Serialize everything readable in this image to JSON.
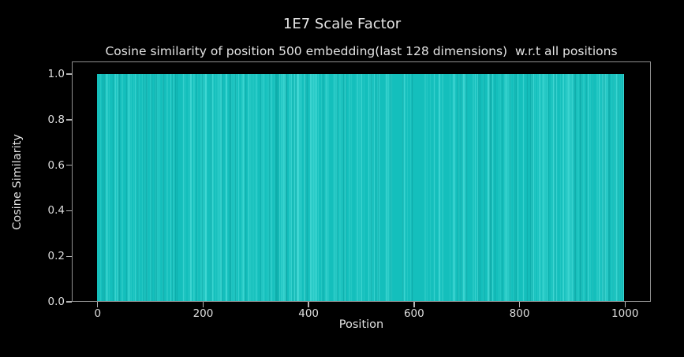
{
  "figure": {
    "suptitle": "1E7 Scale Factor"
  },
  "chart_data": {
    "type": "bar",
    "title": "Cosine similarity of position 500 embedding(last 128 dimensions)  w.r.t all positions",
    "xlabel": "Position",
    "ylabel": "Cosine Similarity",
    "x_ticks": [
      0,
      200,
      400,
      600,
      800,
      1000
    ],
    "y_ticks": [
      "0.0",
      "0.2",
      "0.4",
      "0.6",
      "0.8",
      "1.0"
    ],
    "xlim": [
      -49,
      1049
    ],
    "ylim": [
      0,
      1.056
    ],
    "n_bars": 1000,
    "x_start": 0,
    "x_end": 999,
    "bar_value": 1.0,
    "values_summary": "all 1000 bars have cosine similarity 1.0 (flat top at y=1.0)",
    "reference_position": 500,
    "grid": false,
    "legend": null,
    "colors": {
      "background": "#000000",
      "bar": "#14bfbc",
      "bar_streak_light": "#4adcd8",
      "bar_streak_dark": "#0da5a4",
      "text": "#e3e3e3",
      "spine": "#8f8f8f",
      "tick": "#b5b5b5"
    }
  }
}
